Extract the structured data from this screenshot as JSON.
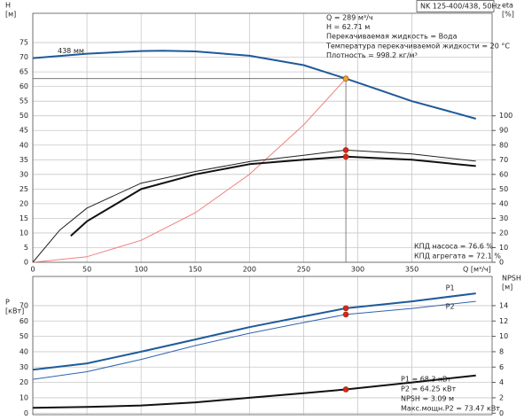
{
  "chart_data": [
    {
      "type": "line",
      "model": "NK 125-400/438, 50Hz",
      "ylabel": [
        "H",
        "[м]"
      ],
      "y2label": [
        "eta",
        "[%]"
      ],
      "xlabel": "Q [м³/ч]",
      "info": [
        "Q = 289 м³/ч",
        "H = 62.71 м",
        "Перекачиваемая жидкость = Вода",
        "Температура перекачиваемой жидкости = 20 °C",
        "Плотность = 998.2 кг/м³"
      ],
      "notes": [
        "КПД насоса = 76.6 %",
        "КПД агрегата = 72.1 %"
      ],
      "xlim": [
        0,
        424
      ],
      "xticks": [
        0,
        50,
        100,
        150,
        200,
        250,
        300,
        350
      ],
      "xtick_labels": true,
      "ylim": [
        0,
        85
      ],
      "yticks": [
        0,
        5,
        10,
        15,
        20,
        25,
        30,
        35,
        40,
        45,
        50,
        55,
        60,
        65,
        70,
        75
      ],
      "y2lim": [
        0,
        170
      ],
      "y2ticks": [
        0,
        10,
        20,
        30,
        40,
        50,
        60,
        70,
        80,
        90,
        100
      ],
      "grid": true,
      "series": [
        {
          "name": "438 мм",
          "label_at": "start",
          "color": "#1f5a9a",
          "width": 2,
          "x": [
            0,
            50,
            100,
            120,
            150,
            200,
            250,
            289,
            320,
            350,
            380,
            409
          ],
          "values": [
            69.7,
            71.2,
            72.1,
            72.2,
            72.0,
            70.5,
            67.3,
            62.71,
            58.8,
            55.0,
            52.0,
            49.0
          ]
        },
        {
          "color": "#f08080",
          "width": 1,
          "x": [
            0,
            50,
            100,
            150,
            200,
            250,
            289
          ],
          "values": [
            0,
            1.9,
            7.5,
            16.9,
            30.0,
            46.9,
            62.71
          ]
        },
        {
          "axis": "y2",
          "color": "#222222",
          "width": 1,
          "x": [
            0,
            25,
            50,
            100,
            150,
            200,
            250,
            289,
            350,
            409
          ],
          "values": [
            0,
            22,
            37,
            54,
            62,
            68.7,
            73,
            76.6,
            74,
            69
          ]
        },
        {
          "axis": "y2",
          "color": "#111111",
          "width": 2,
          "x": [
            35,
            50,
            100,
            150,
            200,
            250,
            289,
            350,
            409
          ],
          "values": [
            18,
            28,
            50,
            60,
            67,
            70,
            72.1,
            70,
            65.7
          ]
        }
      ],
      "points": [
        {
          "x": 289,
          "y": 62.71,
          "color": "#f5a623"
        },
        {
          "x": 289,
          "y": 76.6,
          "axis": "y2",
          "color": "#e02020"
        },
        {
          "x": 289,
          "y": 72.1,
          "axis": "y2",
          "color": "#e02020"
        }
      ]
    },
    {
      "type": "line",
      "ylabel": [
        "P",
        "[кВт]"
      ],
      "y2label": [
        "NPSH",
        "[м]"
      ],
      "notes": [
        "P1 = 68.3 кВт",
        "P2 = 64.25 кВт",
        "NPSH = 3.09 м",
        "Макс.мощн.P2 = 73.47 кВт"
      ],
      "xlim": [
        0,
        424
      ],
      "xticks": [
        0,
        50,
        100,
        150,
        200,
        250,
        300,
        350
      ],
      "xtick_labels": false,
      "ylim": [
        -1,
        89
      ],
      "yticks": [
        0,
        10,
        20,
        30,
        40,
        50,
        60,
        70
      ],
      "y2lim": [
        -0.2,
        17.8
      ],
      "y2ticks": [
        0,
        2,
        4,
        6,
        8,
        10,
        12,
        14
      ],
      "grid": true,
      "series": [
        {
          "name": "P1",
          "label_at": "end-above",
          "color": "#1f5a9a",
          "width": 2,
          "x": [
            0,
            50,
            100,
            150,
            200,
            250,
            289,
            350,
            409
          ],
          "values": [
            28.3,
            32.4,
            40,
            48,
            56,
            63,
            68.3,
            72.8,
            78
          ]
        },
        {
          "name": "P2",
          "label_at": "end-below",
          "color": "#2f64b0",
          "width": 1,
          "x": [
            0,
            50,
            100,
            150,
            200,
            250,
            289,
            350,
            409
          ],
          "values": [
            22,
            27,
            35,
            44,
            52,
            59,
            64.25,
            68.2,
            72.8
          ]
        },
        {
          "axis": "y2",
          "color": "#111111",
          "width": 2,
          "x": [
            0,
            50,
            100,
            150,
            200,
            250,
            289,
            350,
            409
          ],
          "values": [
            0.7,
            0.8,
            1.0,
            1.4,
            2.0,
            2.6,
            3.09,
            4.0,
            4.9
          ]
        }
      ],
      "points": [
        {
          "x": 289,
          "y": 68.3,
          "color": "#e02020"
        },
        {
          "x": 289,
          "y": 64.25,
          "color": "#e02020"
        },
        {
          "x": 289,
          "y": 3.09,
          "axis": "y2",
          "color": "#e02020"
        }
      ]
    }
  ]
}
